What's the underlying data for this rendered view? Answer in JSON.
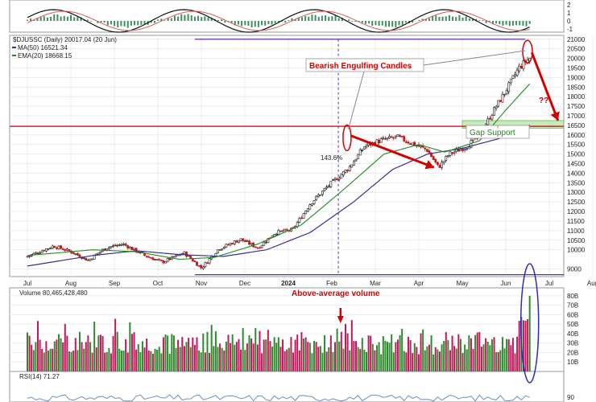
{
  "chart_data": {
    "type": "candlestick",
    "title": "$DJUSSC (Daily) 20017.04 (20 Jun)",
    "legend": [
      {
        "name": "MA(50) 16521.34",
        "color": "#3b2f8f"
      },
      {
        "name": "EMA(20) 18668.15",
        "color": "#1f8a1f"
      }
    ],
    "price_axis": {
      "ylim": [
        8600,
        21200
      ],
      "ticks": [
        9000,
        10000,
        10500,
        11000,
        11500,
        12000,
        12500,
        13000,
        13500,
        14000,
        14500,
        15000,
        15500,
        16000,
        16500,
        17000,
        17500,
        18000,
        18500,
        19000,
        19500,
        20000,
        20500,
        21000
      ]
    },
    "months": [
      "Jul",
      "Aug",
      "Sep",
      "Oct",
      "Nov",
      "Dec",
      "2024",
      "Feb",
      "Mar",
      "Apr",
      "May",
      "Jun",
      "Jul",
      "Aug"
    ],
    "close_path": [
      {
        "m": 0,
        "v": 9650
      },
      {
        "m": 0.6,
        "v": 10200
      },
      {
        "m": 1.0,
        "v": 9900
      },
      {
        "m": 1.4,
        "v": 9450
      },
      {
        "m": 1.8,
        "v": 10100
      },
      {
        "m": 2.2,
        "v": 10300
      },
      {
        "m": 2.7,
        "v": 9700
      },
      {
        "m": 3.1,
        "v": 9350
      },
      {
        "m": 3.6,
        "v": 9850
      },
      {
        "m": 4.0,
        "v": 9050
      },
      {
        "m": 4.4,
        "v": 10050
      },
      {
        "m": 4.9,
        "v": 10550
      },
      {
        "m": 5.3,
        "v": 10100
      },
      {
        "m": 5.7,
        "v": 10900
      },
      {
        "m": 6.1,
        "v": 11050
      },
      {
        "m": 6.5,
        "v": 12400
      },
      {
        "m": 6.9,
        "v": 13300
      },
      {
        "m": 7.4,
        "v": 14300
      },
      {
        "m": 7.75,
        "v": 15400
      },
      {
        "m": 8.1,
        "v": 15700
      },
      {
        "m": 8.5,
        "v": 15900
      },
      {
        "m": 8.9,
        "v": 15500
      },
      {
        "m": 9.2,
        "v": 15200
      },
      {
        "m": 9.45,
        "v": 14300
      },
      {
        "m": 9.7,
        "v": 15000
      },
      {
        "m": 10.1,
        "v": 15400
      },
      {
        "m": 10.4,
        "v": 16000
      },
      {
        "m": 10.7,
        "v": 17200
      },
      {
        "m": 11.0,
        "v": 18300
      },
      {
        "m": 11.3,
        "v": 19500
      },
      {
        "m": 11.55,
        "v": 20017
      }
    ],
    "ma50_path": [
      {
        "m": 0,
        "v": 9150
      },
      {
        "m": 1.5,
        "v": 9700
      },
      {
        "m": 2.5,
        "v": 9950
      },
      {
        "m": 3.5,
        "v": 9750
      },
      {
        "m": 4.5,
        "v": 9650
      },
      {
        "m": 5.5,
        "v": 10000
      },
      {
        "m": 6.5,
        "v": 10900
      },
      {
        "m": 7.5,
        "v": 12500
      },
      {
        "m": 8.4,
        "v": 14200
      },
      {
        "m": 9.2,
        "v": 15000
      },
      {
        "m": 10.0,
        "v": 15300
      },
      {
        "m": 11.0,
        "v": 15900
      },
      {
        "m": 11.55,
        "v": 16521
      }
    ],
    "ema20_path": [
      {
        "m": 0,
        "v": 9700
      },
      {
        "m": 1.5,
        "v": 10000
      },
      {
        "m": 2.5,
        "v": 9900
      },
      {
        "m": 3.5,
        "v": 9500
      },
      {
        "m": 4.3,
        "v": 9600
      },
      {
        "m": 5.3,
        "v": 10300
      },
      {
        "m": 6.3,
        "v": 11300
      },
      {
        "m": 7.3,
        "v": 13200
      },
      {
        "m": 8.2,
        "v": 15000
      },
      {
        "m": 9.0,
        "v": 15500
      },
      {
        "m": 9.6,
        "v": 15100
      },
      {
        "m": 10.4,
        "v": 15700
      },
      {
        "m": 11.0,
        "v": 17300
      },
      {
        "m": 11.55,
        "v": 18668
      }
    ],
    "horizontal_lines": [
      {
        "value": 16450,
        "color": "#d40000"
      },
      {
        "value": 21000,
        "color": "#5a2ea6"
      },
      {
        "value": 8700,
        "color": "#5a2ea6"
      }
    ],
    "gap_band": {
      "from": 16350,
      "to": 16750
    },
    "annotations": {
      "bearish": "Bearish Engulfing Candles",
      "gap": "Gap Support",
      "question": "??",
      "pct": "143.6%",
      "volume_note": "Above-average volume"
    },
    "volume": {
      "label": "Volume 80,465,428,480",
      "ticks": [
        "80B",
        "70B",
        "60B",
        "50B",
        "40B",
        "30B",
        "20B",
        "10B"
      ],
      "tick_values": [
        80,
        70,
        60,
        50,
        40,
        30,
        20,
        10
      ],
      "ylim": [
        0,
        85
      ]
    },
    "rsi": {
      "label": "RSI(14) 71.27",
      "ticks": [
        "90"
      ]
    },
    "top_panel": {
      "ticks": [
        "2",
        "1",
        "0",
        "-1"
      ]
    }
  }
}
